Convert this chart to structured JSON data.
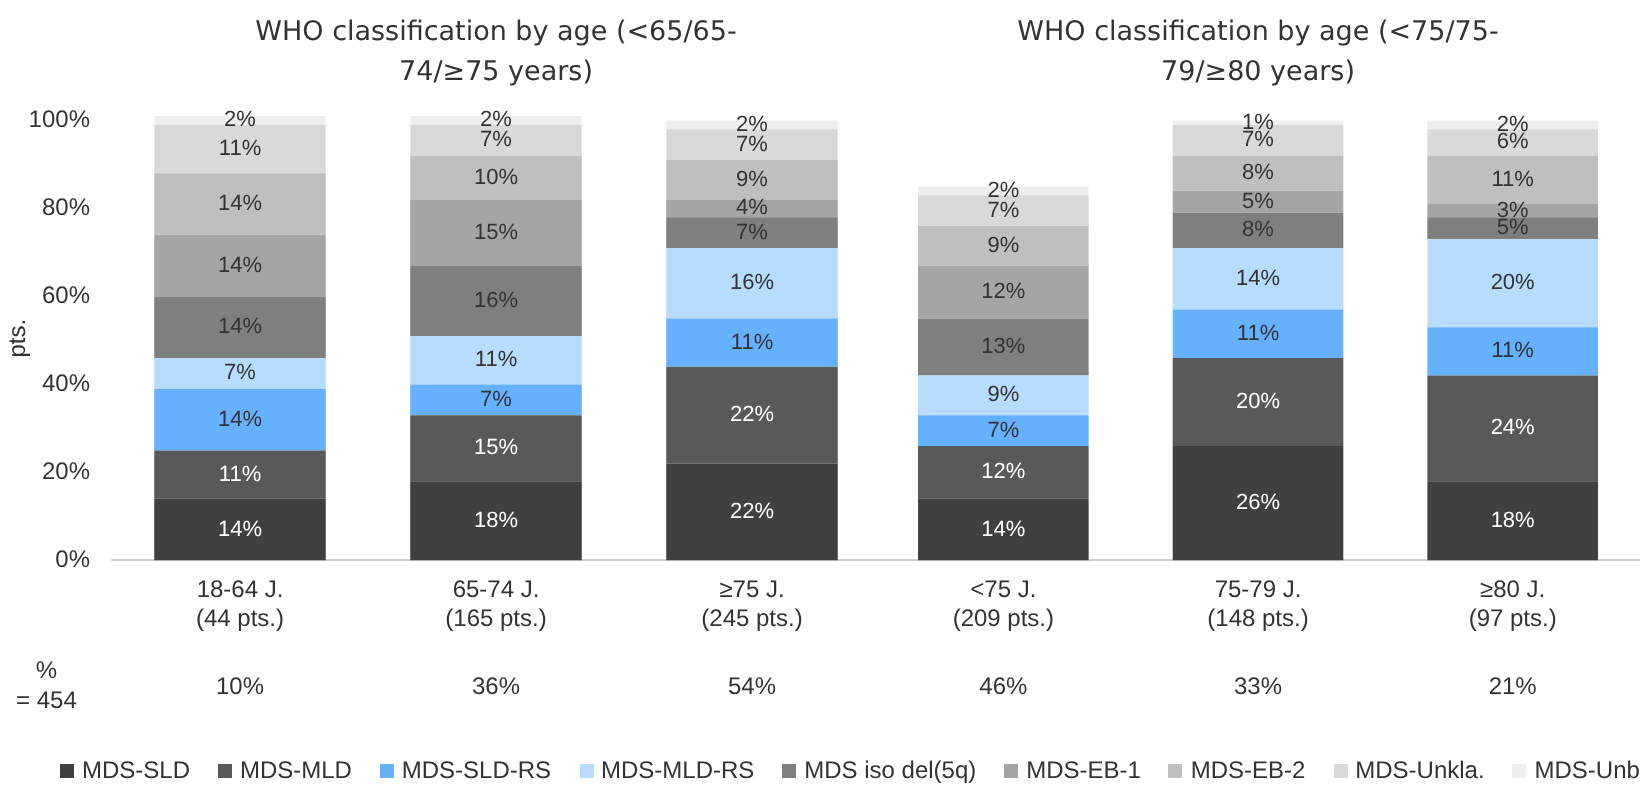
{
  "chart_data": [
    {
      "type": "bar",
      "title": "WHO classification by age (<65/65-74/≥75 years)",
      "ylabel": "pts.",
      "stacked": true,
      "legend": "bottom",
      "grid": false,
      "categories": [
        "18-64 J.\n(44 pts.)",
        "65-74 J.\n(165 pts.)",
        "≥75 J.\n(245 pts.)"
      ],
      "ylim": [
        0,
        101
      ],
      "yticks": [
        {
          "value": 0,
          "label": "0%"
        },
        {
          "value": 20,
          "label": "20%"
        },
        {
          "value": 40,
          "label": "40%"
        },
        {
          "value": 60,
          "label": "60%"
        },
        {
          "value": 80,
          "label": "80%"
        },
        {
          "value": 100,
          "label": "100%"
        }
      ],
      "series": [
        {
          "name": "MDS-SLD",
          "color": "#404040",
          "values": [
            14,
            18,
            22
          ],
          "value_labels": [
            "14%",
            "18%",
            "22%"
          ]
        },
        {
          "name": "MDS-MLD",
          "color": "#595959",
          "values": [
            11,
            15,
            22
          ],
          "value_labels": [
            "11%",
            "15%",
            "22%"
          ]
        },
        {
          "name": "MDS-SLD-RS",
          "color": "#65b0ff",
          "values": [
            14,
            7,
            11
          ],
          "value_labels": [
            "14%",
            "7%",
            "11%"
          ]
        },
        {
          "name": "MDS-MLD-RS",
          "color": "#b8dcff",
          "values": [
            7,
            11,
            16
          ],
          "value_labels": [
            "7%",
            "11%",
            "16%"
          ]
        },
        {
          "name": "MDS iso del(5q)",
          "color": "#7f7f7f",
          "values": [
            14,
            16,
            7
          ],
          "value_labels": [
            "14%",
            "16%",
            "7%"
          ]
        },
        {
          "name": "MDS-EB-1",
          "color": "#a5a5a5",
          "values": [
            14,
            15,
            4
          ],
          "value_labels": [
            "14%",
            "15%",
            "4%"
          ]
        },
        {
          "name": "MDS-EB-2",
          "color": "#bfbfbf",
          "values": [
            14,
            10,
            9
          ],
          "value_labels": [
            "14%",
            "10%",
            "9%"
          ]
        },
        {
          "name": "MDS-Unkla.",
          "color": "#d9d9d9",
          "values": [
            11,
            7,
            7
          ],
          "value_labels": [
            "11%",
            "7%",
            "7%"
          ]
        },
        {
          "name": "MDS-Unb",
          "color": "#efefef",
          "values": [
            2,
            2,
            2
          ],
          "value_labels": [
            "2%",
            "2%",
            "2%"
          ]
        }
      ],
      "annotations": [
        "%\n= 454",
        "10%",
        "36%",
        "54%"
      ]
    },
    {
      "type": "bar",
      "title": "WHO classification by age (<75/75-79/≥80 years)",
      "stacked": true,
      "legend": false,
      "grid": false,
      "tick_labels": "x",
      "categories": [
        "<75 J.\n(209 pts.)",
        "75-79 J.\n(148 pts.)",
        "≥80 J.\n(97 pts.)"
      ],
      "ylim": [
        0,
        101
      ],
      "series": [
        {
          "color": "#404040",
          "values": [
            14,
            26,
            18
          ],
          "value_labels": [
            "14%",
            "26%",
            "18%"
          ]
        },
        {
          "color": "#595959",
          "values": [
            12,
            20,
            24
          ],
          "value_labels": [
            "12%",
            "20%",
            "24%"
          ]
        },
        {
          "color": "#65b0ff",
          "values": [
            7,
            11,
            11
          ],
          "value_labels": [
            "7%",
            "11%",
            "11%"
          ]
        },
        {
          "color": "#b8dcff",
          "values": [
            9,
            14,
            20
          ],
          "value_labels": [
            "9%",
            "14%",
            "20%"
          ]
        },
        {
          "color": "#7f7f7f",
          "values": [
            13,
            8,
            5
          ],
          "value_labels": [
            "13%",
            "8%",
            "5%"
          ]
        },
        {
          "color": "#a5a5a5",
          "values": [
            12,
            5,
            3
          ],
          "value_labels": [
            "12%",
            "5%",
            "3%"
          ]
        },
        {
          "color": "#bfbfbf",
          "values": [
            9,
            8,
            11
          ],
          "value_labels": [
            "9%",
            "8%",
            "11%"
          ]
        },
        {
          "color": "#d9d9d9",
          "values": [
            7,
            7,
            6
          ],
          "value_labels": [
            "7%",
            "7%",
            "6%"
          ]
        },
        {
          "color": "#efefef",
          "values": [
            2,
            1,
            2
          ],
          "value_labels": [
            "2%",
            "1%",
            "2%"
          ]
        }
      ],
      "annotations": [
        "46%",
        "33%",
        "21%"
      ]
    }
  ]
}
